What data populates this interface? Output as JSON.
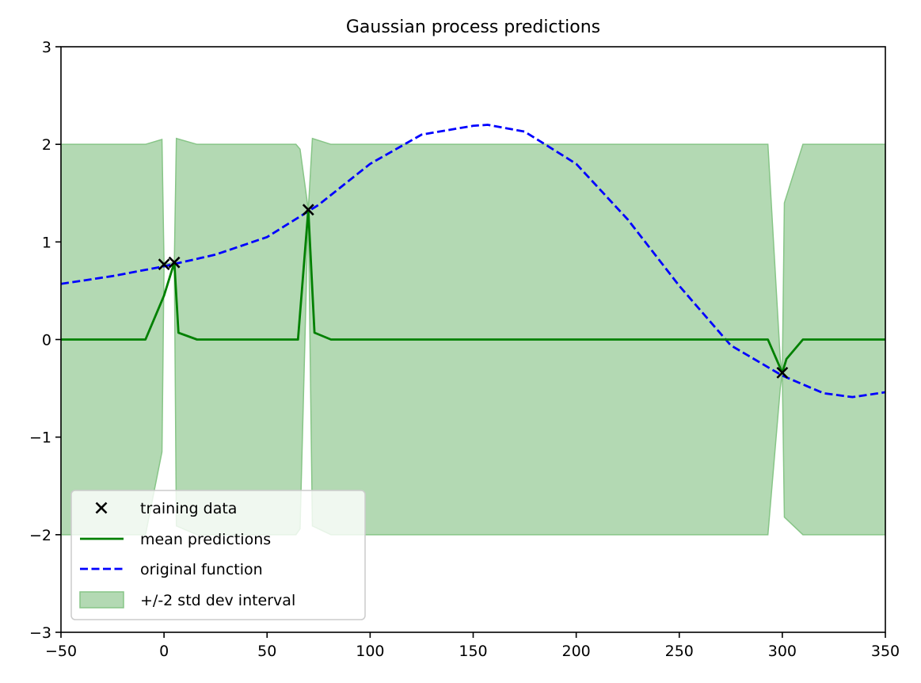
{
  "colors": {
    "mean": "#008000",
    "original": "#0000ff",
    "band_fill": "#b3d9b3",
    "band_edge": "#87c587",
    "training_marker": "#000000"
  },
  "chart_data": {
    "type": "line",
    "title": "Gaussian process predictions",
    "xlabel": "",
    "ylabel": "",
    "xlim": [
      -50,
      350
    ],
    "ylim": [
      -3,
      3
    ],
    "x_ticks": [
      -50,
      0,
      50,
      100,
      150,
      200,
      250,
      300,
      350
    ],
    "x_tick_labels": [
      "−50",
      "0",
      "50",
      "100",
      "150",
      "200",
      "250",
      "300",
      "350"
    ],
    "y_ticks": [
      -3,
      -2,
      -1,
      0,
      1,
      2,
      3
    ],
    "y_tick_labels": [
      "−3",
      "−2",
      "−1",
      "0",
      "1",
      "2",
      "3"
    ],
    "grid": false,
    "legend": {
      "position": "lower-left",
      "entries": [
        {
          "label": "training data",
          "kind": "marker-x"
        },
        {
          "label": "mean predictions",
          "kind": "solid-line"
        },
        {
          "label": "original function",
          "kind": "dashed-line"
        },
        {
          "label": "+/-2 std dev interval",
          "kind": "patch"
        }
      ]
    },
    "series": [
      {
        "name": "training data",
        "kind": "scatter",
        "x": [
          0,
          5,
          70,
          300
        ],
        "y": [
          0.77,
          0.79,
          1.33,
          -0.34
        ]
      },
      {
        "name": "mean predictions",
        "kind": "line",
        "x": [
          -50,
          -9,
          0,
          5,
          7,
          16,
          65,
          70,
          73,
          81,
          293,
          300,
          302,
          310,
          350
        ],
        "y": [
          0,
          0,
          0.45,
          0.79,
          0.07,
          0,
          0,
          1.33,
          0.07,
          0,
          0,
          -0.34,
          -0.2,
          0,
          0
        ]
      },
      {
        "name": "original function",
        "kind": "dashed-line",
        "x": [
          -50,
          -25,
          0,
          25,
          50,
          75,
          100,
          125,
          150,
          157,
          175,
          200,
          225,
          250,
          275,
          300,
          320,
          334,
          350
        ],
        "y": [
          0.57,
          0.65,
          0.75,
          0.87,
          1.05,
          1.38,
          1.8,
          2.1,
          2.19,
          2.2,
          2.13,
          1.8,
          1.23,
          0.55,
          -0.06,
          -0.37,
          -0.55,
          -0.59,
          -0.54
        ]
      },
      {
        "name": "+/-2 std dev interval",
        "kind": "band",
        "x": [
          -50,
          -9,
          -1,
          0,
          5,
          6,
          16,
          64,
          66,
          70,
          72,
          81,
          293,
          299,
          300,
          301,
          310,
          350
        ],
        "lower": [
          -2,
          -2,
          -1.15,
          0.77,
          0.79,
          -1.91,
          -2,
          -2,
          -1.94,
          1.33,
          -1.91,
          -2,
          -2,
          -0.5,
          -0.34,
          -1.82,
          -2,
          -2
        ],
        "upper": [
          2,
          2,
          2.05,
          0.77,
          0.79,
          2.06,
          2,
          2,
          1.95,
          1.33,
          2.06,
          2,
          2,
          -0.2,
          -0.34,
          1.4,
          2,
          2
        ]
      }
    ]
  }
}
